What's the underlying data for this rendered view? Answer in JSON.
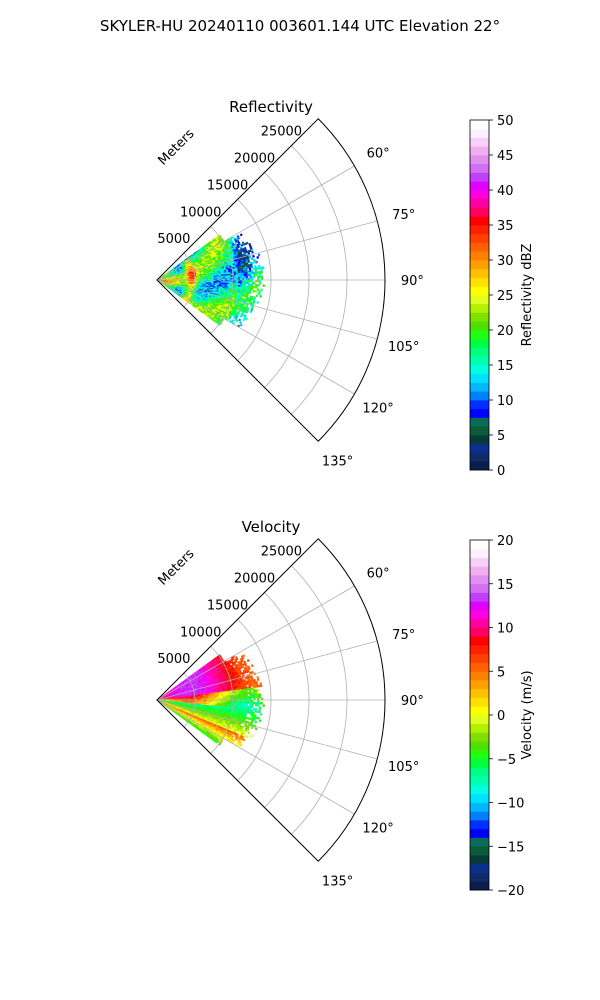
{
  "figure": {
    "title": "SKYLER-HU  20240110  003601.144 UTC Elevation 22°"
  },
  "chart_data": [
    {
      "type": "heatmap",
      "name": "reflectivity",
      "title": "Reflectivity",
      "radial_label": "Meters",
      "radial_ticks": [
        5000,
        10000,
        15000,
        20000,
        25000
      ],
      "radial_tick_labels": [
        "5000",
        "10000",
        "15000",
        "20000",
        "25000"
      ],
      "rmax": 30000,
      "data_range_max": 15000,
      "theta_range_deg": [
        45,
        135
      ],
      "theta_ticks": [
        60,
        75,
        90,
        105,
        120,
        135
      ],
      "theta_tick_labels": [
        "60°",
        "75°",
        "90°",
        "105°",
        "120°",
        "135°"
      ],
      "grid": true,
      "colorbar": {
        "label": "Reflectivity dBZ",
        "min": 0,
        "max": 50,
        "ticks": [
          0,
          5,
          10,
          15,
          20,
          25,
          30,
          35,
          40,
          45,
          50
        ],
        "tick_labels": [
          "0",
          "5",
          "10",
          "15",
          "20",
          "25",
          "30",
          "35",
          "40",
          "45",
          "50"
        ]
      }
    },
    {
      "type": "heatmap",
      "name": "velocity",
      "title": "Velocity",
      "radial_label": "Meters",
      "radial_ticks": [
        5000,
        10000,
        15000,
        20000,
        25000
      ],
      "radial_tick_labels": [
        "5000",
        "10000",
        "15000",
        "20000",
        "25000"
      ],
      "rmax": 30000,
      "data_range_max": 15000,
      "theta_range_deg": [
        45,
        135
      ],
      "theta_ticks": [
        60,
        75,
        90,
        105,
        120,
        135
      ],
      "theta_tick_labels": [
        "60°",
        "75°",
        "90°",
        "105°",
        "120°",
        "135°"
      ],
      "grid": true,
      "colorbar": {
        "label": "Velocity (m/s)",
        "min": -20,
        "max": 20,
        "ticks": [
          -20,
          -15,
          -10,
          -5,
          0,
          5,
          10,
          15,
          20
        ],
        "tick_labels": [
          "−20",
          "−15",
          "−10",
          "−5",
          "0",
          "5",
          "10",
          "15",
          "20"
        ]
      }
    }
  ]
}
